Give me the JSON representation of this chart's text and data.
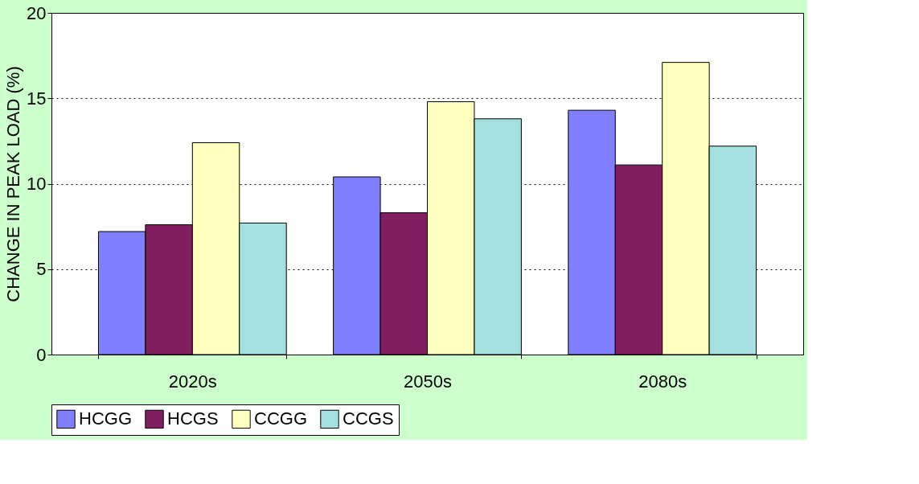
{
  "chart_data": {
    "type": "bar",
    "ylabel": "CHANGE IN PEAK LOAD (%)",
    "categories": [
      "2020s",
      "2050s",
      "2080s"
    ],
    "series": [
      {
        "name": "HCGG",
        "color": "#8080ff",
        "values": [
          7.2,
          10.4,
          14.3
        ]
      },
      {
        "name": "HCGS",
        "color": "#7f1f5f",
        "values": [
          7.6,
          8.3,
          11.1
        ]
      },
      {
        "name": "CCGG",
        "color": "#ffffc0",
        "values": [
          12.4,
          14.8,
          17.1
        ]
      },
      {
        "name": "CCGS",
        "color": "#a4e0e0",
        "values": [
          7.7,
          13.8,
          12.2
        ]
      }
    ],
    "ylim": [
      0,
      20
    ],
    "yticks": [
      0,
      5,
      10,
      15,
      20
    ],
    "grid": "y",
    "legend": "bottom"
  }
}
